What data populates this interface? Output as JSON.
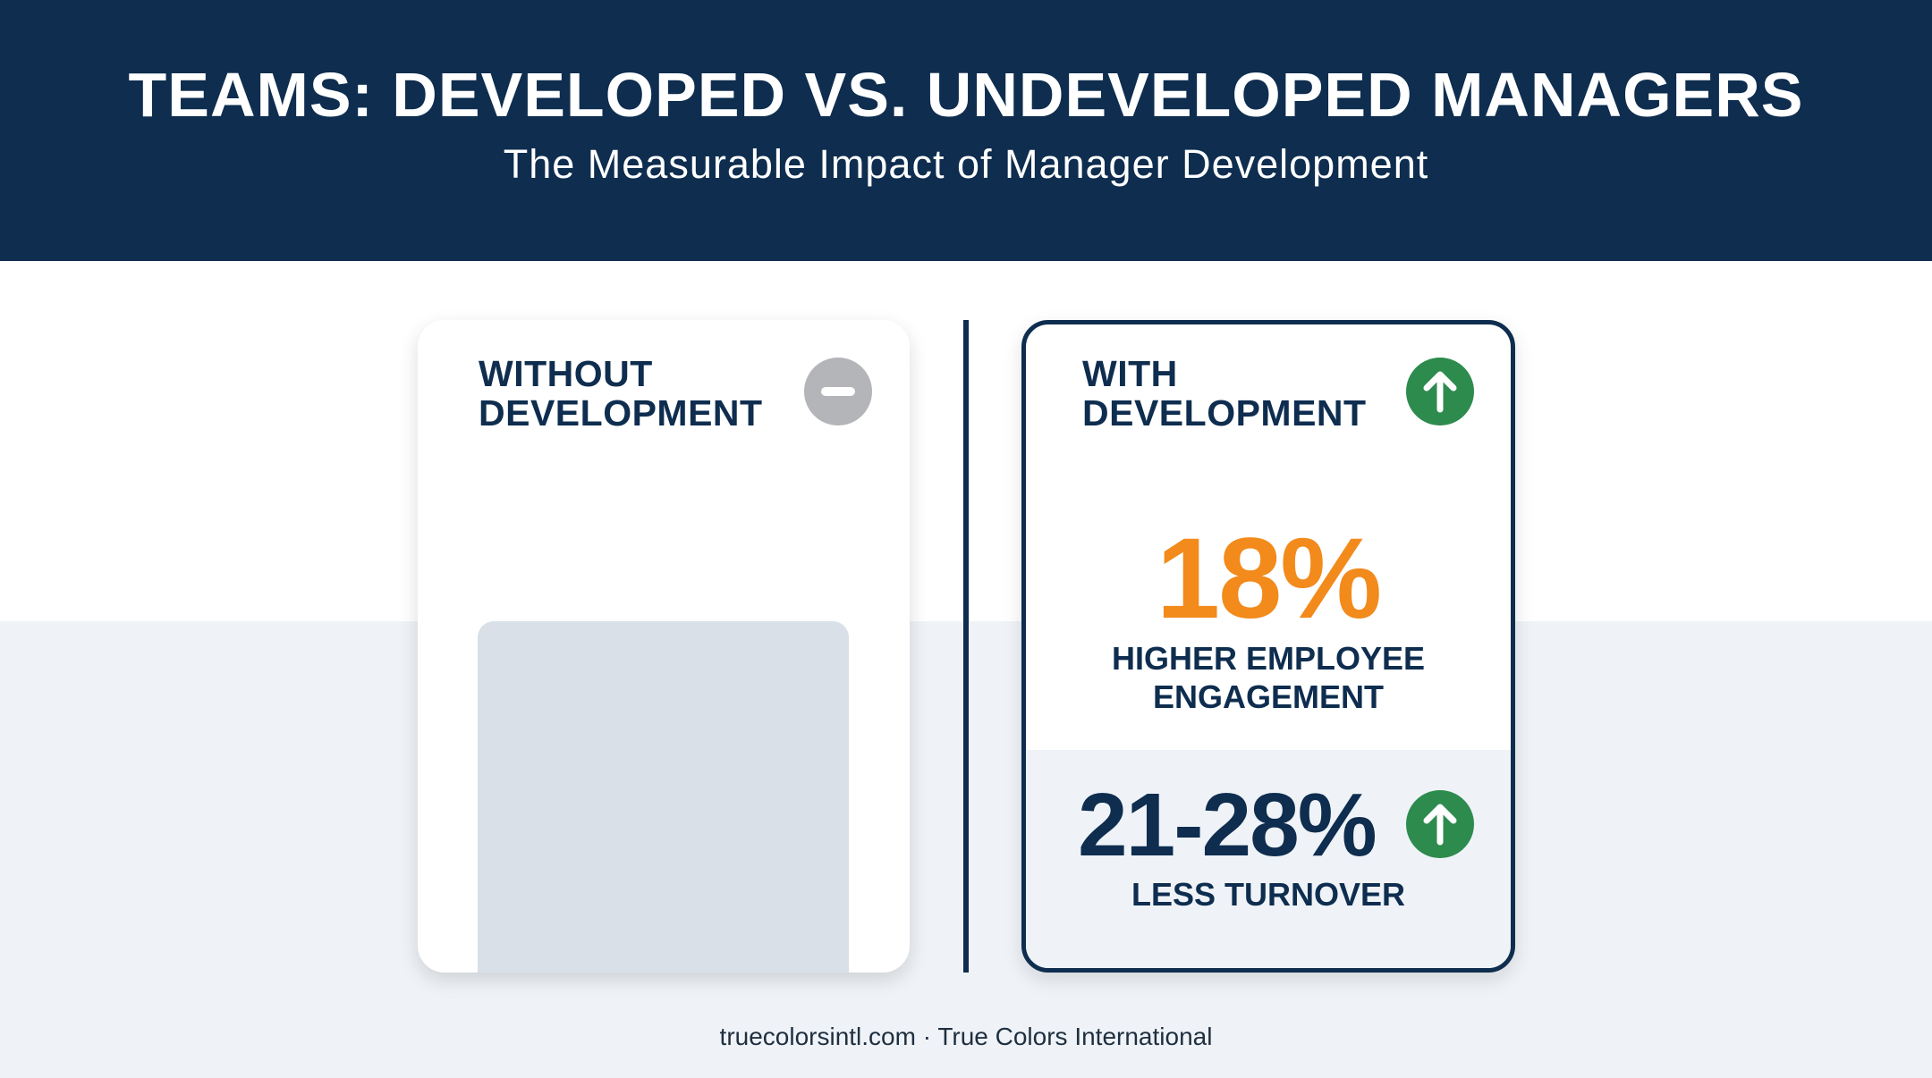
{
  "header": {
    "title": "TEAMS: DEVELOPED VS. UNDEVELOPED MANAGERS",
    "subtitle": "The Measurable Impact of Manager Development"
  },
  "left_card": {
    "title_line1": "WITHOUT",
    "title_line2": "DEVELOPMENT",
    "icon": "minus-circle-icon"
  },
  "right_card": {
    "title_line1": "WITH",
    "title_line2": "DEVELOPMENT",
    "icon": "arrow-up-circle-icon",
    "stat1": {
      "value": "18%",
      "label_line1": "HIGHER EMPLOYEE",
      "label_line2": "ENGAGEMENT"
    },
    "stat2": {
      "value": "21-28%",
      "label": "LESS TURNOVER",
      "icon": "arrow-up-circle-icon"
    }
  },
  "footer": {
    "text": "truecolorsintl.com · True Colors International"
  },
  "colors": {
    "navy": "#0e2d4f",
    "orange": "#f28a1c",
    "green": "#2e8b4e",
    "gray_icon": "#b3b5b8",
    "placeholder": "#d9e0e7"
  }
}
